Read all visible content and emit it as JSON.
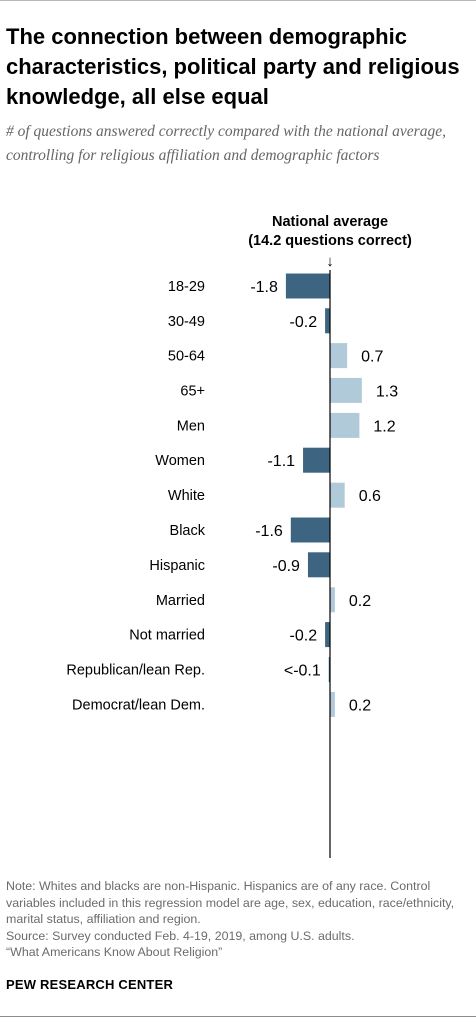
{
  "title": "The connection between demographic characteristics, political party and religious knowledge, all else equal",
  "subtitle": "# of questions answered correctly compared with the national average, controlling for religious affiliation and demographic factors",
  "annotation": {
    "line1": "National average",
    "line2": "(14.2 questions correct)",
    "arrow": "↓"
  },
  "chart_data": {
    "type": "bar",
    "orientation": "horizontal",
    "baseline_label": "National average (14.2 questions correct)",
    "categories": [
      "18-29",
      "30-49",
      "50-64",
      "65+",
      "Men",
      "Women",
      "White",
      "Black",
      "Hispanic",
      "Married",
      "Not married",
      "Republican/lean Rep.",
      "Democrat/lean Dem."
    ],
    "groups": [
      [
        "18-29",
        "30-49",
        "50-64",
        "65+"
      ],
      [
        "Men",
        "Women"
      ],
      [
        "White",
        "Black",
        "Hispanic"
      ],
      [
        "Married",
        "Not married"
      ],
      [
        "Republican/lean Rep.",
        "Democrat/lean Dem."
      ]
    ],
    "values": [
      -1.8,
      -0.2,
      0.7,
      1.3,
      1.2,
      -1.1,
      0.6,
      -1.6,
      -0.9,
      0.2,
      -0.2,
      -0.05,
      0.2
    ],
    "value_labels": [
      "-1.8",
      "-0.2",
      "0.7",
      "1.3",
      "1.2",
      "-1.1",
      "0.6",
      "-1.6",
      "-0.9",
      "0.2",
      "-0.2",
      "<-0.1",
      "0.2"
    ],
    "colors": {
      "negative": "#3d6481",
      "positive": "#b1cad9"
    },
    "xlim": [
      -2,
      1.5
    ]
  },
  "notes": {
    "note": "Note: Whites and blacks are non-Hispanic. Hispanics are of any race. Control variables included in this regression model are age, sex, education, race/ethnicity, marital status, affiliation and region.",
    "source": "Source: Survey conducted Feb. 4-19, 2019, among U.S. adults.",
    "report": "“What Americans Know About Religion”"
  },
  "brand": "PEW RESEARCH CENTER"
}
